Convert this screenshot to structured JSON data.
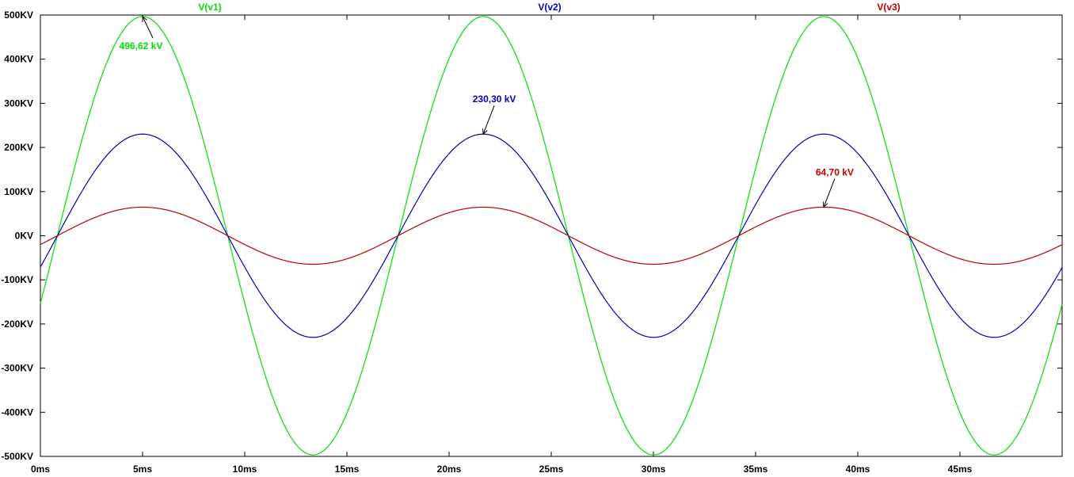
{
  "chart_data": {
    "type": "line",
    "x_unit": "ms",
    "x_range": [
      0,
      50
    ],
    "y_unit": "KV",
    "ylim": [
      -500,
      500
    ],
    "xticks": [
      {
        "value": 0,
        "label": "0ms"
      },
      {
        "value": 5,
        "label": "5ms"
      },
      {
        "value": 10,
        "label": "10ms"
      },
      {
        "value": 15,
        "label": "15ms"
      },
      {
        "value": 20,
        "label": "20ms"
      },
      {
        "value": 25,
        "label": "25ms"
      },
      {
        "value": 30,
        "label": "30ms"
      },
      {
        "value": 35,
        "label": "35ms"
      },
      {
        "value": 40,
        "label": "40ms"
      },
      {
        "value": 45,
        "label": "45ms"
      }
    ],
    "yticks": [
      {
        "value": 500,
        "label": "500KV"
      },
      {
        "value": 400,
        "label": "400KV"
      },
      {
        "value": 300,
        "label": "300KV"
      },
      {
        "value": 200,
        "label": "200KV"
      },
      {
        "value": 100,
        "label": "100KV"
      },
      {
        "value": 0,
        "label": "0KV"
      },
      {
        "value": -100,
        "label": "-100KV"
      },
      {
        "value": -200,
        "label": "-200KV"
      },
      {
        "value": -300,
        "label": "-300KV"
      },
      {
        "value": -400,
        "label": "-400KV"
      },
      {
        "value": -500,
        "label": "-500KV"
      }
    ],
    "grid": false,
    "legend_placement": "top",
    "series": [
      {
        "name": "V(v1)",
        "color": "#00e000",
        "amplitude_kV": 496.62,
        "period_ms": 16.67,
        "peak_times_ms": [
          5.0,
          21.67,
          38.33
        ],
        "zero_crossings_ms": [
          0.8,
          9.2,
          17.5,
          25.8,
          34.2,
          42.5
        ]
      },
      {
        "name": "V(v2)",
        "color": "#0000c0",
        "amplitude_kV": 230.3,
        "period_ms": 16.67,
        "peak_times_ms": [
          5.0,
          21.67,
          38.33
        ],
        "zero_crossings_ms": [
          0.8,
          9.2,
          17.5,
          25.8,
          34.2,
          42.5
        ]
      },
      {
        "name": "V(v3)",
        "color": "#c00000",
        "amplitude_kV": 64.7,
        "period_ms": 16.67,
        "peak_times_ms": [
          5.0,
          21.67,
          38.33
        ],
        "zero_crossings_ms": [
          0.8,
          9.2,
          17.5,
          25.8,
          34.2,
          42.5
        ]
      }
    ],
    "annotations": [
      {
        "series": "V(v1)",
        "text": "496,62 kV",
        "x_ms": 5.0,
        "y_kV": 496.62
      },
      {
        "series": "V(v2)",
        "text": "230,30 kV",
        "x_ms": 21.67,
        "y_kV": 230.3
      },
      {
        "series": "V(v3)",
        "text": "64,70 kV",
        "x_ms": 38.33,
        "y_kV": 64.7
      }
    ]
  }
}
